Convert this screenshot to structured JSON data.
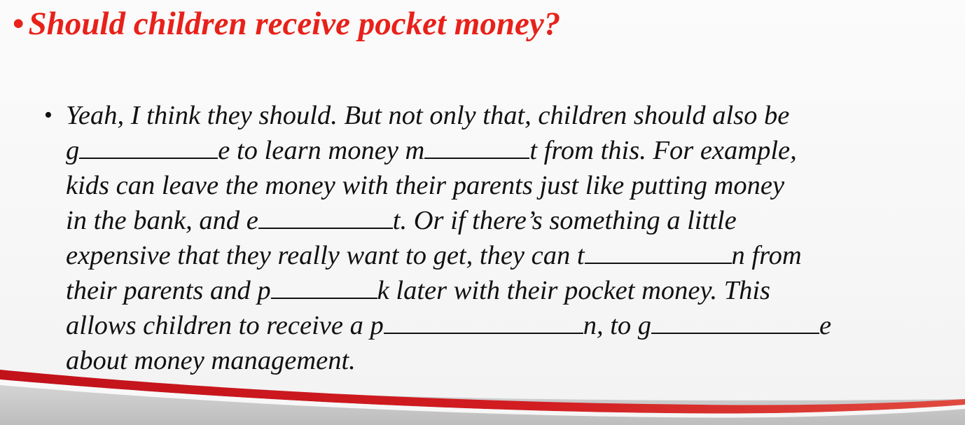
{
  "title": {
    "bullet": "•",
    "text": "Should children receive pocket money?"
  },
  "paragraph": {
    "bullet": "•",
    "line1": "Yeah, I think they should. But not only that, children should also be",
    "line2_a": "g",
    "line2_b": "e to learn money m",
    "line2_c": "t from this. For example,",
    "line3": "kids can leave the money with their parents just like putting money",
    "line4_a": "in the bank, and e",
    "line4_b": "t. Or if there’s something a little",
    "line5_a": "expensive that they really want to get, they can t",
    "line5_b": "n from",
    "line6_a": "their parents and p",
    "line6_b": "k later with their pocket money. This",
    "line7_a": "allows children to receive a p",
    "line7_b": "n, to g",
    "line7_c": "e",
    "line8": "about money management."
  },
  "colors": {
    "title": "#e8211a",
    "text": "#111111",
    "accent_red": "#c1121a"
  }
}
